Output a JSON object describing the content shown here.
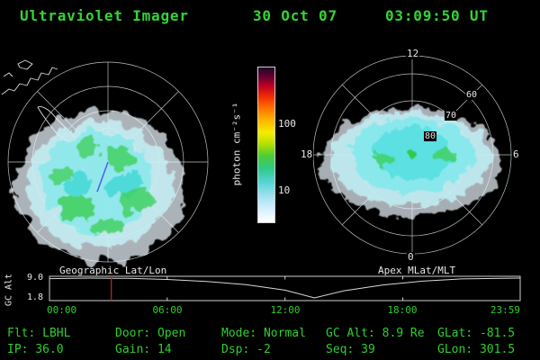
{
  "header": {
    "title": "Ultraviolet Imager",
    "date": "30 Oct 07",
    "time": "03:09:50 UT"
  },
  "colorbar": {
    "label": "photon cm⁻²s⁻¹",
    "tick_upper": "100",
    "tick_lower": "10"
  },
  "panels": {
    "left_caption": "Geographic Lat/Lon",
    "right_caption": "Apex MLat/MLT"
  },
  "apex": {
    "mlt_top": "12",
    "mlt_left": "18",
    "mlt_right": "6",
    "mlt_bottom": "0",
    "mlat_80": "80",
    "mlat_70": "70",
    "mlat_60": "60"
  },
  "gcalt": {
    "ylabel": "GC Alt",
    "ymax_label": "9.0",
    "ymin_label": "1.8",
    "xticks": [
      "00:00",
      "06:00",
      "12:00",
      "18:00",
      "23:59"
    ]
  },
  "status": {
    "flt": "Flt: LBHL",
    "door": "Door: Open",
    "mode": "Mode: Normal",
    "gc_alt": "GC Alt: 8.9 Re",
    "glat": "GLat: -81.5",
    "ip": "IP: 36.0",
    "gain": "Gain: 14",
    "dsp": "Dsp: -2",
    "seq": "Seq: 39",
    "glon": "GLon: 301.5"
  },
  "colors": {
    "text_green": "#2fcf2f",
    "text_white": "#e8e8e8",
    "grid_gray": "#b9c0c4",
    "aurora_cyan": "#8ce8ea",
    "aurora_green": "#3fcf5a",
    "current_time_red": "#cc2222",
    "track_blue": "#4a5cff"
  },
  "chart_data": [
    {
      "type": "heatmap",
      "id": "aurora_geographic",
      "title": "Geographic Lat/Lon",
      "units": "photon cm-2 s-1",
      "colorbar_scale": "log",
      "colorbar_ticks": [
        10,
        100
      ],
      "description": "Speckled auroral UV emission over the southern polar cap (Antarctica map underlay); mostly 5-20 photon cm-2 s-1 shown as pale blue/cyan with green patches"
    },
    {
      "type": "heatmap",
      "id": "aurora_apex",
      "title": "Apex MLat/MLT",
      "mlat_rings": [
        80,
        70,
        60
      ],
      "mlt_labels": [
        "12",
        "18",
        "6",
        "0"
      ],
      "description": "Auroral emission in magnetic coordinates: east-west elongated cyan region spanning roughly 60-85 MLat with a green core near the pole"
    },
    {
      "type": "line",
      "id": "gc_alt",
      "title": "GC Alt",
      "ylabel": "GC Alt (Re)",
      "ylim": [
        1.8,
        9.0
      ],
      "x": [
        "00:00",
        "02:00",
        "04:00",
        "06:00",
        "08:00",
        "10:00",
        "12:00",
        "13:30",
        "15:00",
        "17:00",
        "19:00",
        "21:00",
        "23:59"
      ],
      "values": [
        8.8,
        9.0,
        8.9,
        8.5,
        7.8,
        6.6,
        4.6,
        1.8,
        4.4,
        6.5,
        7.9,
        8.7,
        9.0
      ],
      "xticks": [
        "00:00",
        "06:00",
        "12:00",
        "18:00",
        "23:59"
      ],
      "current_time": "03:09",
      "current_value": 8.9
    }
  ]
}
